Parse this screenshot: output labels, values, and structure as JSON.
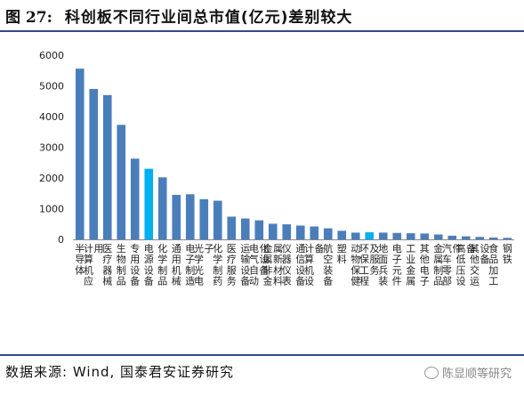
{
  "header": {
    "fig_label": "图 27:",
    "title": "科创板不同行业间总市值(亿元)差别较大"
  },
  "footer": {
    "source": "数据来源: Wind, 国泰君安证券研究",
    "watermark": "陈显顺等研究"
  },
  "colors": {
    "bar": "#4a7ebb",
    "highlight": "#00b0f0",
    "axis": "#888888",
    "rule": "#2f4e83"
  },
  "chart_data": {
    "type": "bar",
    "title": "",
    "xlabel": "",
    "ylabel": "",
    "ylim": [
      0,
      6000
    ],
    "yticks": [
      0,
      1000,
      2000,
      3000,
      4000,
      5000,
      6000
    ],
    "grid": false,
    "categories": [
      "半导体",
      "计算机应用",
      "医疗器械",
      "生物制品",
      "专用设备",
      "电源设备",
      "化学制品",
      "通用机械",
      "电子制造",
      "光学光电子",
      "化学制药",
      "医疗服务",
      "运输设备",
      "电气自动化设备",
      "金属非金属新材料",
      "仪器仪表",
      "通信设备",
      "计算机设备",
      "航空装备",
      "塑料",
      "动物保健",
      "环保工程及服务",
      "地面兵装",
      "电子元件",
      "工业金属",
      "其他电子",
      "金属制品",
      "汽车零部件",
      "高低压设备",
      "其他交运设备",
      "食品加工",
      "钢铁"
    ],
    "values": [
      5560,
      4900,
      4700,
      3730,
      2630,
      2300,
      2020,
      1450,
      1470,
      1310,
      1260,
      740,
      680,
      620,
      510,
      490,
      450,
      420,
      360,
      280,
      220,
      230,
      220,
      210,
      200,
      190,
      160,
      120,
      100,
      80,
      60,
      50
    ],
    "highlight_indices": [
      5,
      21
    ]
  }
}
